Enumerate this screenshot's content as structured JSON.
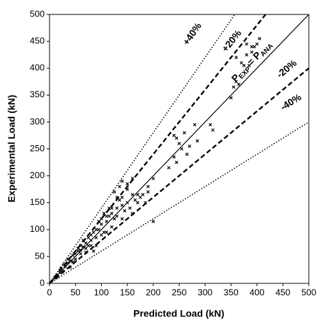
{
  "chart_data": {
    "type": "scatter",
    "x_label": "Predicted Load (kN)",
    "y_label": "Experimental Load (kN)",
    "xlim": [
      0,
      500
    ],
    "ylim": [
      0,
      500
    ],
    "xticks": [
      0,
      50,
      100,
      150,
      200,
      250,
      300,
      350,
      400,
      450,
      500
    ],
    "yticks": [
      0,
      50,
      100,
      150,
      200,
      250,
      300,
      350,
      400,
      450,
      500
    ],
    "grid": false,
    "color": "#000000",
    "reference_lines": [
      {
        "slope": 1.4,
        "style": "dotted",
        "label": "+40%"
      },
      {
        "slope": 1.2,
        "style": "dashed",
        "label": "+20%"
      },
      {
        "slope": 1,
        "style": "solid",
        "label": [
          "P",
          "EXP",
          " = P",
          "ANA"
        ]
      },
      {
        "slope": 0.8,
        "style": "dashed",
        "label": "-20%"
      },
      {
        "slope": 0.6,
        "style": "dotted",
        "label": "-40%"
      }
    ],
    "x": [
      240,
      245,
      250,
      255,
      260,
      265,
      270,
      280,
      285,
      240,
      245,
      230,
      200,
      190,
      185,
      175,
      170,
      160,
      165,
      150,
      140,
      130,
      200,
      310,
      315,
      350,
      355,
      360,
      365,
      360,
      370,
      375,
      380,
      385,
      390,
      390,
      395,
      405,
      380,
      400,
      150,
      155,
      160,
      170,
      140,
      135,
      130,
      120,
      125,
      110,
      115,
      100,
      105,
      95,
      90,
      85,
      80,
      75,
      70,
      65,
      60,
      55,
      50,
      45,
      40,
      35,
      30,
      25,
      20,
      15,
      10,
      50,
      60,
      70,
      80,
      90,
      100,
      110,
      120,
      130,
      140,
      145,
      90,
      85,
      110,
      120,
      140,
      115,
      105,
      95,
      75,
      65,
      55,
      45,
      35,
      28,
      22,
      40,
      60,
      70,
      100,
      80,
      160,
      135,
      125,
      150,
      180,
      190
    ],
    "y": [
      275,
      270,
      260,
      250,
      280,
      240,
      255,
      295,
      265,
      235,
      225,
      215,
      195,
      180,
      150,
      160,
      165,
      165,
      155,
      175,
      190,
      160,
      115,
      295,
      285,
      345,
      365,
      375,
      370,
      420,
      410,
      405,
      425,
      405,
      430,
      440,
      440,
      455,
      445,
      445,
      150,
      140,
      130,
      150,
      145,
      155,
      140,
      130,
      120,
      115,
      125,
      110,
      95,
      100,
      85,
      95,
      80,
      70,
      75,
      68,
      62,
      60,
      45,
      52,
      42,
      38,
      32,
      22,
      20,
      12,
      10,
      55,
      70,
      65,
      90,
      100,
      120,
      125,
      140,
      125,
      120,
      135,
      70,
      60,
      95,
      105,
      160,
      140,
      130,
      115,
      85,
      80,
      65,
      40,
      45,
      35,
      28,
      30,
      55,
      58,
      90,
      70,
      195,
      180,
      170,
      185,
      165,
      170
    ]
  }
}
